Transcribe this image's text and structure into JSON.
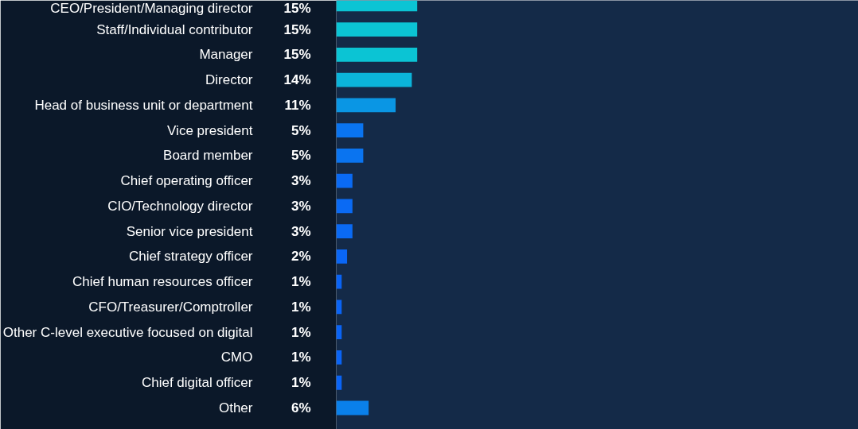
{
  "chart_data": {
    "type": "bar",
    "orientation": "horizontal",
    "value_labels": [
      "15%",
      "15%",
      "15%",
      "14%",
      "11%",
      "5%",
      "5%",
      "3%",
      "3%",
      "3%",
      "2%",
      "1%",
      "1%",
      "1%",
      "1%",
      "1%",
      "6%"
    ],
    "tick_labels": "y",
    "grid": false,
    "categories": [
      "CEO/President/Managing director",
      "Staff/Individual contributor",
      "Manager",
      "Director",
      "Head of business unit or department",
      "Vice president",
      "Board member",
      "Chief operating officer",
      "CIO/Technology director",
      "Senior vice president",
      "Chief strategy officer",
      "Chief human resources officer",
      "CFO/Treasurer/Comptroller",
      "Other C-level executive focused on digital",
      "CMO",
      "Chief digital officer",
      "Other"
    ],
    "values": [
      15,
      15,
      15,
      14,
      11,
      5,
      5,
      3,
      3,
      3,
      2,
      1,
      1,
      1,
      1,
      1,
      6
    ],
    "colors": [
      "#0bc4d4",
      "#0bc4d4",
      "#0bc4d4",
      "#0bb4da",
      "#0a96e4",
      "#0a74f0",
      "#0a74f0",
      "#0a6af4",
      "#0a6af4",
      "#0a6af4",
      "#0a66f5",
      "#0a64f6",
      "#0a64f6",
      "#0a64f6",
      "#0a64f6",
      "#0a64f6",
      "#0a80ea"
    ]
  }
}
